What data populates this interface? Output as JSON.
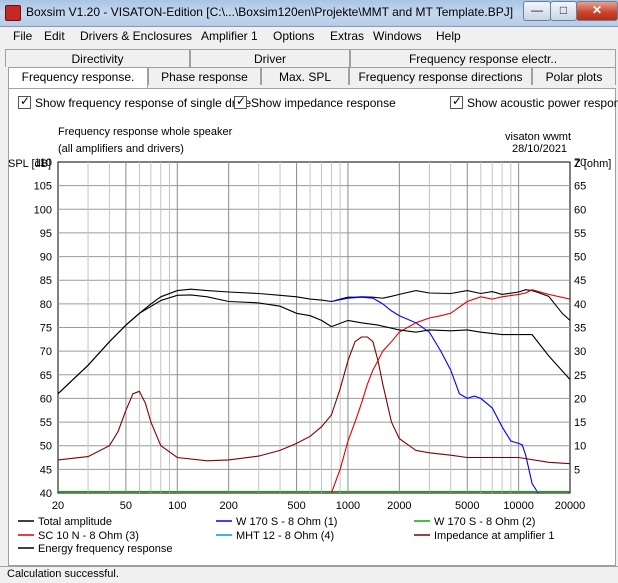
{
  "window": {
    "title": "Boxsim V1.20 - VISATON-Edition [C:\\...\\Boxsim120en\\Projekte\\MMT and MT Template.BPJ]",
    "minimize": "—",
    "maximize": "□",
    "close": "✕"
  },
  "menu": [
    "File",
    "Edit",
    "Drivers & Enclosures",
    "Amplifier 1",
    "Options",
    "Extras",
    "Windows",
    "Help"
  ],
  "tabs_row1": [
    "Directivity",
    "Driver",
    "Frequency response electr.."
  ],
  "tabs_row2": [
    "Frequency response.",
    "Phase response",
    "Max. SPL",
    "Frequency response directions",
    "Polar plots"
  ],
  "checkboxes": [
    {
      "label": "Show frequency response of single drive",
      "checked": true
    },
    {
      "label": "Show impedance response",
      "checked": true
    },
    {
      "label": "Show acoustic power response",
      "checked": true
    }
  ],
  "chart_header": {
    "title_line1": "Frequency response whole speaker",
    "title_line2": "(all amplifiers and drivers)",
    "author": "visaton wwmt",
    "date": "28/10/2021"
  },
  "chart_data": {
    "type": "line",
    "x_scale": "log",
    "xlim": [
      20,
      20000
    ],
    "x_ticks": [
      20,
      50,
      100,
      200,
      500,
      1000,
      2000,
      5000,
      10000,
      20000
    ],
    "ylabel_left": "SPL [dB]",
    "ylabel_right": "Z [ohm]",
    "ylim_left": [
      40,
      110
    ],
    "ylim_right": [
      0,
      70
    ],
    "y_ticks_left": [
      40,
      45,
      50,
      55,
      60,
      65,
      70,
      75,
      80,
      85,
      90,
      95,
      100,
      105,
      110
    ],
    "y_ticks_right": [
      5,
      10,
      15,
      20,
      25,
      30,
      35,
      40,
      45,
      50,
      55,
      60,
      65,
      70
    ],
    "grid": true,
    "legend_position": "bottom",
    "series": [
      {
        "name": "Total amplitude",
        "color": "#000000",
        "axis": "left",
        "x": [
          20,
          30,
          40,
          50,
          60,
          70,
          80,
          100,
          120,
          150,
          200,
          300,
          400,
          500,
          600,
          700,
          800,
          900,
          1000,
          1100,
          1200,
          1400,
          1600,
          1800,
          2000,
          2500,
          3000,
          4000,
          5000,
          6000,
          7000,
          8000,
          10000,
          11000,
          12000,
          13000,
          15000,
          18000,
          20000
        ],
        "y": [
          61,
          67,
          72,
          75.5,
          78,
          80,
          81.5,
          82.8,
          83.1,
          82.8,
          82.5,
          82.2,
          81.8,
          81.5,
          81,
          80.8,
          80.5,
          81,
          81.4,
          81.4,
          81.5,
          81.4,
          81.2,
          81.6,
          82,
          82.8,
          82.3,
          82.2,
          82.8,
          82.2,
          82.6,
          82,
          82.5,
          83,
          82.8,
          82.4,
          81.6,
          78,
          76.5
        ]
      },
      {
        "name": "W 170 S - 8 Ohm (1)",
        "color": "#0000ff",
        "axis": "left",
        "x": [
          800,
          1000,
          1200,
          1400,
          1600,
          1800,
          2000,
          2500,
          3000,
          3500,
          4000,
          4500,
          5000,
          5500,
          6000,
          7000,
          8000,
          9000,
          10000,
          10500,
          11000,
          12000,
          13000
        ],
        "y": [
          80.5,
          81.2,
          81.4,
          81.2,
          80,
          78.5,
          77.5,
          76,
          74,
          70,
          66,
          61,
          60,
          60.5,
          60,
          58,
          54,
          51,
          50.5,
          50.2,
          48,
          42,
          40
        ]
      },
      {
        "name": "W 170 S - 8 Ohm (2)",
        "color": "#00b000",
        "axis": "left",
        "x": [
          20,
          20000
        ],
        "y": [
          40.3,
          40.3
        ]
      },
      {
        "name": "SC 10 N - 8 Ohm (3)",
        "color": "#e00000",
        "axis": "left",
        "x": [
          800,
          900,
          1000,
          1100,
          1200,
          1300,
          1400,
          1500,
          1600,
          1800,
          2000,
          2500,
          3000,
          3500,
          4000,
          5000,
          6000,
          7000,
          8000,
          10000,
          11000,
          12000,
          15000,
          20000
        ],
        "y": [
          40,
          45,
          51,
          55,
          59,
          63,
          66,
          68,
          70,
          72,
          74,
          76,
          77,
          77.5,
          78,
          80.5,
          81.5,
          81,
          81.5,
          82,
          82.3,
          83,
          82,
          81
        ]
      },
      {
        "name": "MHT 12 - 8 Ohm (4)",
        "color": "#00a0c0",
        "axis": "left",
        "x": [],
        "y": []
      },
      {
        "name": "Impedance at amplifier 1",
        "color": "#800000",
        "axis": "right",
        "x": [
          20,
          30,
          40,
          45,
          50,
          55,
          60,
          65,
          70,
          80,
          100,
          150,
          200,
          300,
          400,
          500,
          600,
          700,
          800,
          900,
          1000,
          1100,
          1200,
          1300,
          1400,
          1500,
          1600,
          1800,
          2000,
          2500,
          3000,
          4000,
          5000,
          7000,
          10000,
          15000,
          20000
        ],
        "y": [
          7,
          7.7,
          10,
          13,
          17.5,
          21,
          21.5,
          19,
          15,
          10,
          7.5,
          6.8,
          7,
          7.8,
          9,
          10.5,
          12,
          14,
          16.5,
          22,
          28,
          32,
          33,
          33,
          32,
          28,
          23,
          15,
          11.5,
          9,
          8.5,
          8,
          7.5,
          7.5,
          7.5,
          6.5,
          6.2
        ]
      },
      {
        "name": "Energy frequency response",
        "color": "#000000",
        "axis": "left",
        "x": [
          20,
          30,
          40,
          50,
          60,
          80,
          100,
          120,
          150,
          200,
          300,
          400,
          500,
          600,
          700,
          800,
          1000,
          1200,
          1500,
          2000,
          2500,
          3000,
          4000,
          5000,
          6000,
          8000,
          10000,
          12000,
          15000,
          20000
        ],
        "y": [
          61,
          67,
          72,
          75.5,
          78,
          80.7,
          81.8,
          81.9,
          81.5,
          80.5,
          80.2,
          79.5,
          78,
          77.5,
          76.5,
          75.2,
          76.5,
          76,
          75.5,
          74.5,
          74,
          74.5,
          74.3,
          74.5,
          74,
          73.5,
          73.5,
          73.5,
          69,
          64
        ]
      }
    ]
  },
  "legend": [
    "Total amplitude",
    "W 170 S - 8 Ohm (1)",
    "W 170 S - 8 Ohm (2)",
    "SC 10 N - 8 Ohm (3)",
    "MHT 12 - 8 Ohm (4)",
    "Impedance at amplifier 1",
    "Energy frequency response"
  ],
  "status": "Calculation successful."
}
